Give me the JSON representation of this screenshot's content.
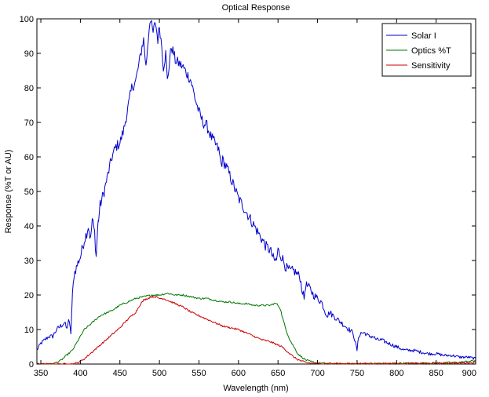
{
  "chart_data": {
    "type": "line",
    "title": "Optical Response",
    "xlabel": "Wavelength (nm)",
    "ylabel": "Response (%T or AU)",
    "xlim": [
      345,
      900
    ],
    "ylim": [
      0,
      100
    ],
    "xticks": [
      350,
      400,
      450,
      500,
      550,
      600,
      650,
      700,
      750,
      800,
      850,
      900
    ],
    "yticks": [
      0,
      10,
      20,
      30,
      40,
      50,
      60,
      70,
      80,
      90,
      100
    ],
    "grid": false,
    "legend_position": "top-right",
    "series": [
      {
        "name": "Solar I",
        "color": "#0000cc",
        "x": [
          345,
          350,
          355,
          360,
          365,
          370,
          375,
          380,
          383,
          385,
          388,
          390,
          392,
          395,
          398,
          400,
          403,
          405,
          408,
          410,
          413,
          415,
          418,
          420,
          422,
          423,
          425,
          430,
          435,
          440,
          445,
          450,
          455,
          460,
          465,
          470,
          475,
          478,
          480,
          483,
          485,
          488,
          490,
          492,
          495,
          498,
          500,
          503,
          505,
          508,
          510,
          512,
          515,
          518,
          520,
          525,
          530,
          535,
          540,
          545,
          550,
          555,
          560,
          565,
          570,
          575,
          578,
          580,
          585,
          590,
          595,
          600,
          605,
          610,
          615,
          620,
          625,
          630,
          635,
          640,
          645,
          648,
          650,
          652,
          655,
          660,
          665,
          670,
          675,
          678,
          680,
          683,
          685,
          690,
          695,
          700,
          705,
          710,
          713,
          715,
          720,
          725,
          730,
          735,
          740,
          745,
          750,
          752,
          755,
          760,
          765,
          770,
          775,
          780,
          790,
          800,
          810,
          820,
          830,
          840,
          850,
          860,
          870,
          880,
          890,
          895,
          900
        ],
        "y": [
          4,
          6,
          7,
          8,
          8,
          10,
          11,
          12,
          10,
          13,
          9,
          20,
          26,
          28,
          30,
          31,
          34,
          36,
          38,
          40,
          36,
          42,
          38,
          31,
          40,
          42,
          46,
          50,
          55,
          60,
          63,
          64,
          68,
          74,
          80,
          82,
          88,
          92,
          94,
          86,
          92,
          100,
          98,
          96,
          99,
          94,
          98,
          92,
          86,
          90,
          82,
          86,
          92,
          90,
          88,
          87,
          86,
          84,
          82,
          77,
          73,
          70,
          69,
          66,
          64,
          62,
          58,
          59,
          57,
          54,
          51,
          48,
          46,
          44,
          42,
          40,
          38,
          36,
          34,
          33,
          30,
          30,
          33,
          32,
          31,
          28,
          27,
          27,
          26,
          25,
          22,
          19,
          23,
          22,
          20,
          19,
          18,
          15,
          14,
          15,
          14,
          13,
          12,
          11,
          10,
          9,
          4,
          8,
          9,
          9,
          8,
          8,
          7,
          7,
          6,
          5,
          4,
          4,
          3.5,
          3,
          3,
          2.5,
          2.5,
          2,
          2,
          1.8,
          1.5
        ]
      },
      {
        "name": "Optics %T",
        "color": "#007700",
        "x": [
          345,
          365,
          370,
          375,
          380,
          385,
          390,
          395,
          400,
          405,
          410,
          415,
          420,
          425,
          430,
          440,
          450,
          460,
          470,
          480,
          490,
          500,
          510,
          520,
          530,
          540,
          550,
          560,
          570,
          580,
          590,
          600,
          610,
          620,
          630,
          640,
          645,
          648,
          650,
          653,
          655,
          660,
          665,
          670,
          675,
          680,
          685,
          690,
          695,
          700,
          710,
          720,
          750,
          800,
          850,
          880,
          900
        ],
        "y": [
          0,
          0,
          0.5,
          1,
          2,
          3,
          4,
          6,
          8,
          10,
          11,
          12,
          13,
          14,
          14.5,
          15.5,
          17,
          18,
          19,
          19.5,
          20,
          20,
          20.5,
          20,
          20,
          19.5,
          19,
          19,
          18.5,
          18,
          18,
          17.5,
          17.5,
          17,
          17,
          17,
          17.5,
          17.5,
          17,
          16,
          14,
          10,
          7,
          5,
          3,
          2,
          1.2,
          0.8,
          0.5,
          0.3,
          0.2,
          0.1,
          0.1,
          0.2,
          0.3,
          0.5,
          1
        ]
      },
      {
        "name": "Sensitivity",
        "color": "#cc0000",
        "x": [
          345,
          390,
          395,
          400,
          405,
          410,
          415,
          420,
          425,
          430,
          440,
          450,
          460,
          470,
          475,
          480,
          485,
          490,
          495,
          500,
          505,
          510,
          520,
          530,
          540,
          550,
          560,
          570,
          580,
          590,
          600,
          610,
          620,
          630,
          640,
          645,
          650,
          655,
          660,
          665,
          670,
          675,
          680,
          685,
          690,
          700,
          720,
          750,
          800,
          850,
          880,
          900
        ],
        "y": [
          0,
          0,
          0.3,
          0.8,
          1.5,
          2.5,
          3.5,
          4.5,
          5.5,
          6.5,
          8.5,
          10.5,
          13,
          15,
          17,
          18.5,
          19,
          19.5,
          19.5,
          19,
          19,
          18.5,
          17.5,
          16.5,
          15,
          14,
          13,
          12,
          11,
          10.5,
          10,
          9,
          8,
          7,
          6.5,
          6,
          5.5,
          5,
          4,
          3,
          2,
          1.3,
          0.8,
          0.5,
          0.3,
          0.1,
          0.1,
          0.1,
          0.1,
          0.2,
          0.3,
          0.5
        ]
      }
    ]
  }
}
